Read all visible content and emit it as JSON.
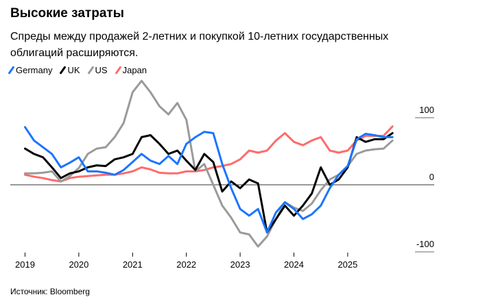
{
  "header": {
    "title": "Высокие затраты",
    "subtitle": "Спреды между продажей 2-летних и покупкой 10-летних государственных облигаций расширяются."
  },
  "source": "Источник: Bloomberg",
  "chart_data": {
    "type": "line",
    "title": "Высокие затраты",
    "xlabel": "",
    "ylabel": "",
    "ylim": [
      -100,
      100
    ],
    "xlim": [
      "2019-01",
      "2025-12"
    ],
    "x_tick_labels": [
      "2019",
      "2020",
      "2021",
      "2022",
      "2023",
      "2024",
      "2025"
    ],
    "y_tick_labels": [
      "100",
      "0",
      "-100"
    ],
    "y_ticks": [
      100,
      0,
      -100
    ],
    "grid": false,
    "legend_position": "top-left",
    "x": [
      "2019-01",
      "2019-03",
      "2019-05",
      "2019-07",
      "2019-09",
      "2019-11",
      "2020-01",
      "2020-03",
      "2020-05",
      "2020-07",
      "2020-09",
      "2020-11",
      "2021-01",
      "2021-03",
      "2021-05",
      "2021-07",
      "2021-09",
      "2021-11",
      "2022-01",
      "2022-03",
      "2022-05",
      "2022-07",
      "2022-09",
      "2022-11",
      "2023-01",
      "2023-03",
      "2023-05",
      "2023-07",
      "2023-09",
      "2023-11",
      "2024-01",
      "2024-03",
      "2024-05",
      "2024-07",
      "2024-09",
      "2024-11",
      "2025-01",
      "2025-03",
      "2025-05",
      "2025-07",
      "2025-09",
      "2025-11"
    ],
    "series": [
      {
        "name": "Japan",
        "color": "#ff6b6b",
        "values": [
          15,
          12,
          10,
          7,
          5,
          10,
          12,
          13,
          14,
          15,
          15,
          17,
          20,
          26,
          23,
          18,
          17,
          17,
          20,
          20,
          22,
          26,
          28,
          31,
          38,
          51,
          48,
          51,
          66,
          77,
          64,
          59,
          66,
          71,
          51,
          48,
          51,
          66,
          73,
          73,
          73,
          87
        ]
      },
      {
        "name": "US",
        "color": "#9a9a9a",
        "values": [
          17,
          17,
          18,
          20,
          5,
          13,
          25,
          46,
          54,
          56,
          71,
          92,
          138,
          155,
          138,
          117,
          105,
          122,
          97,
          20,
          31,
          0,
          -31,
          -49,
          -71,
          -74,
          -92,
          -77,
          -51,
          -26,
          -34,
          -39,
          -28,
          -8,
          8,
          15,
          28,
          46,
          51,
          53,
          54,
          66
        ]
      },
      {
        "name": "UK",
        "color": "#000000",
        "values": [
          54,
          46,
          41,
          26,
          10,
          17,
          20,
          26,
          29,
          28,
          38,
          41,
          46,
          71,
          74,
          61,
          46,
          51,
          36,
          22,
          46,
          34,
          -10,
          5,
          -5,
          8,
          2,
          -71,
          -51,
          -31,
          -46,
          -31,
          -13,
          26,
          0,
          8,
          26,
          71,
          64,
          68,
          68,
          77
        ]
      },
      {
        "name": "Germany",
        "color": "#1a75ff",
        "values": [
          86,
          66,
          56,
          46,
          26,
          33,
          41,
          20,
          20,
          18,
          15,
          22,
          34,
          46,
          36,
          31,
          43,
          31,
          61,
          71,
          79,
          77,
          31,
          -5,
          -36,
          -46,
          -36,
          -71,
          -41,
          -26,
          -36,
          -51,
          -44,
          -31,
          -5,
          15,
          28,
          68,
          76,
          74,
          71,
          71
        ]
      }
    ]
  },
  "legend": [
    {
      "label": "Germany",
      "color": "#1a75ff"
    },
    {
      "label": "UK",
      "color": "#000000"
    },
    {
      "label": "US",
      "color": "#9a9a9a"
    },
    {
      "label": "Japan",
      "color": "#ff6b6b"
    }
  ]
}
